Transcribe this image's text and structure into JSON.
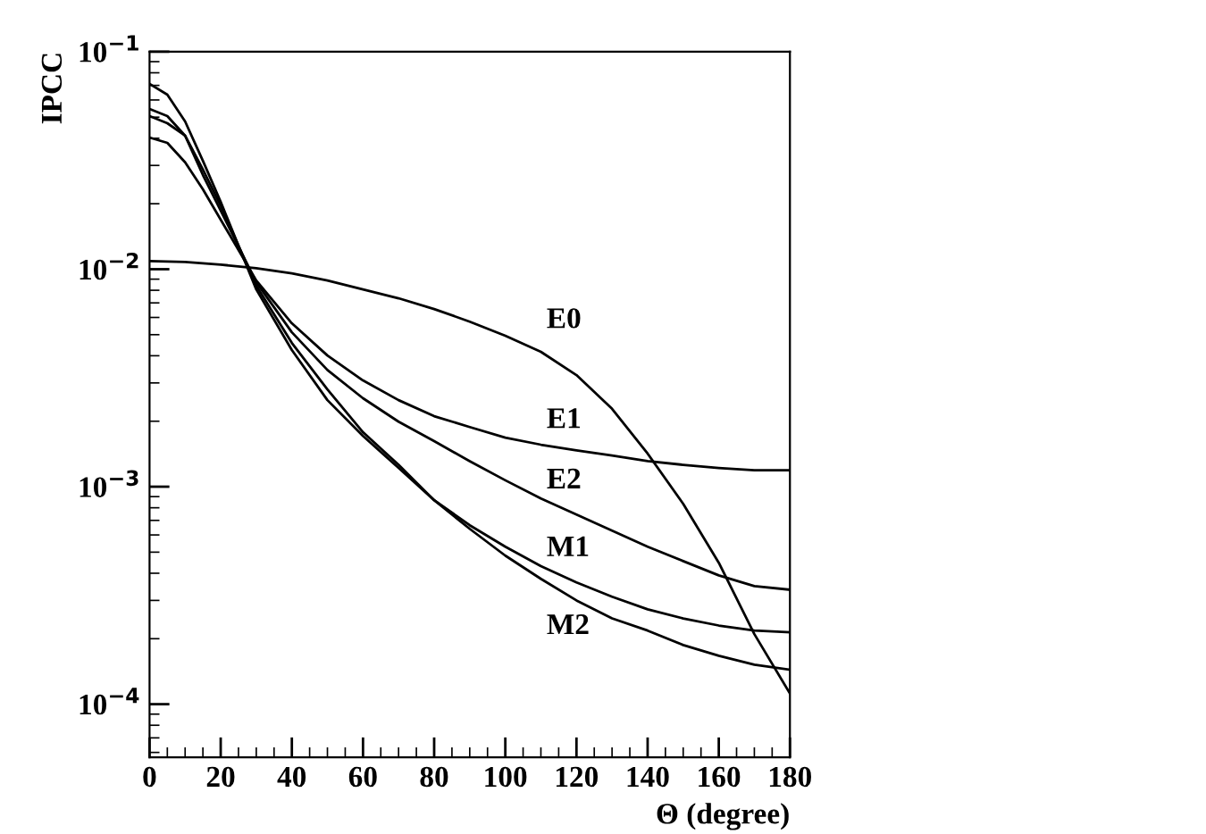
{
  "chart_data": {
    "type": "line",
    "xlabel": "Θ (degree)",
    "ylabel": "IPCC",
    "log": "y",
    "xlim": [
      0,
      180
    ],
    "xticks": [
      0,
      20,
      40,
      60,
      80,
      100,
      120,
      140,
      160,
      180
    ],
    "ylim": [
      5.7e-05,
      0.1
    ],
    "yticks": [
      {
        "value": 0.0001,
        "label": "10$^{−4}$"
      },
      {
        "value": 0.001,
        "label": "10$^{−3}$"
      },
      {
        "value": 0.01,
        "label": "10$^{−2}$"
      },
      {
        "value": 0.1,
        "label": "10$^{−1}$"
      }
    ],
    "grid": false,
    "legend": false,
    "marker": "none",
    "line_style": "solid",
    "x": [
      0,
      5,
      10,
      15,
      20,
      30,
      40,
      50,
      60,
      70,
      80,
      90,
      100,
      110,
      120,
      130,
      140,
      150,
      160,
      170,
      180
    ],
    "series": [
      {
        "name": "E0",
        "color": "#000000",
        "x": [
          0,
          10,
          20,
          30,
          40,
          50,
          60,
          70,
          80,
          90,
          100,
          110,
          120,
          130,
          140,
          150,
          160,
          170,
          180
        ],
        "values": [
          0.0109,
          0.0108,
          0.0105,
          0.0101,
          0.00957,
          0.00887,
          0.00807,
          0.00735,
          0.00656,
          0.00574,
          0.00494,
          0.00417,
          0.00326,
          0.00228,
          0.00142,
          0.000834,
          0.000447,
          0.00021,
          0.000112
        ]
      },
      {
        "name": "E1",
        "color": "#000000",
        "values": [
          0.0403,
          0.0381,
          0.031,
          0.0233,
          0.0169,
          0.00887,
          0.00564,
          0.00401,
          0.00308,
          0.0025,
          0.00211,
          0.00188,
          0.00168,
          0.00156,
          0.00147,
          0.00139,
          0.00131,
          0.00126,
          0.00122,
          0.00119,
          0.00119
        ]
      },
      {
        "name": "E2",
        "color": "#000000",
        "values": [
          0.0506,
          0.0469,
          0.0411,
          0.0271,
          0.0186,
          0.00871,
          0.00513,
          0.00344,
          0.00255,
          0.00199,
          0.00162,
          0.00131,
          0.00107,
          0.000883,
          0.000745,
          0.000628,
          0.00053,
          0.000455,
          0.000391,
          0.000349,
          0.000336
        ]
      },
      {
        "name": "M1",
        "color": "#000000",
        "values": [
          0.0546,
          0.0506,
          0.0411,
          0.0287,
          0.0196,
          0.00839,
          0.00458,
          0.0028,
          0.00178,
          0.00126,
          0.000867,
          0.000665,
          0.00053,
          0.000431,
          0.000363,
          0.000312,
          0.000273,
          0.000248,
          0.00023,
          0.000218,
          0.000214
        ]
      },
      {
        "name": "M2",
        "color": "#000000",
        "values": [
          0.0711,
          0.0635,
          0.0478,
          0.0315,
          0.0204,
          0.00807,
          0.00425,
          0.0025,
          0.00171,
          0.00122,
          0.000867,
          0.00064,
          0.000482,
          0.000377,
          0.0003,
          0.000248,
          0.000218,
          0.000187,
          0.000167,
          0.000152,
          0.000144
        ]
      }
    ]
  }
}
